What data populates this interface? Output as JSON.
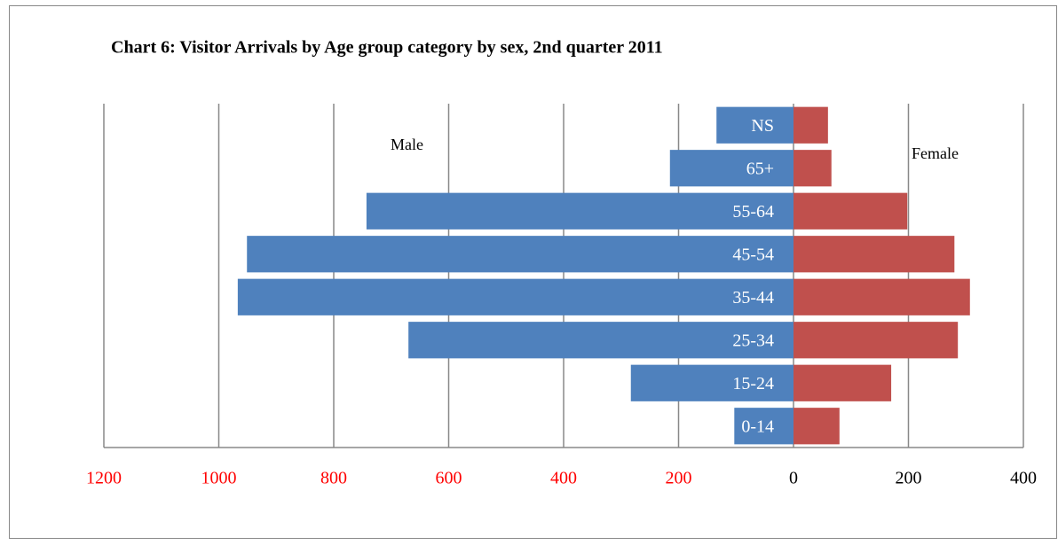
{
  "chart_data": {
    "type": "pyramid",
    "title": "Chart 6: Visitor Arrivals by Age group category by sex, 2nd quarter 2011",
    "categories": [
      "0-14",
      "15-24",
      "25-34",
      "35-44",
      "45-54",
      "55-64",
      "65+",
      "NS"
    ],
    "series": [
      {
        "name": "Male",
        "color": "#4f81bd",
        "values": [
          -103,
          -283,
          -670,
          -967,
          -951,
          -743,
          -215,
          -134
        ]
      },
      {
        "name": "Female",
        "color": "#c0504d",
        "values": [
          80,
          170,
          286,
          307,
          280,
          198,
          66,
          60
        ]
      }
    ],
    "xlim": [
      -1200,
      400
    ],
    "xticks": [
      {
        "value": -1200,
        "label": "1200"
      },
      {
        "value": -1000,
        "label": "1000"
      },
      {
        "value": -800,
        "label": "800"
      },
      {
        "value": -600,
        "label": "600"
      },
      {
        "value": -400,
        "label": "400"
      },
      {
        "value": -200,
        "label": "200"
      },
      0,
      200,
      400
    ],
    "grid": true,
    "negative_tick_color": "#ff0000",
    "positive_tick_color": "#000000"
  }
}
